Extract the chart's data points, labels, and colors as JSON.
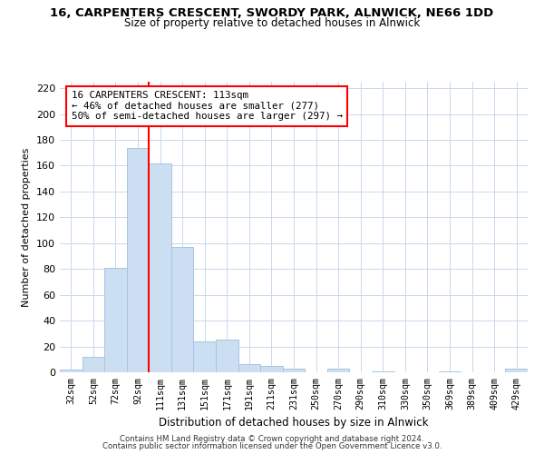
{
  "title": "16, CARPENTERS CRESCENT, SWORDY PARK, ALNWICK, NE66 1DD",
  "subtitle": "Size of property relative to detached houses in Alnwick",
  "xlabel": "Distribution of detached houses by size in Alnwick",
  "ylabel": "Number of detached properties",
  "bar_labels": [
    "32sqm",
    "52sqm",
    "72sqm",
    "92sqm",
    "111sqm",
    "131sqm",
    "151sqm",
    "171sqm",
    "191sqm",
    "211sqm",
    "231sqm",
    "250sqm",
    "270sqm",
    "290sqm",
    "310sqm",
    "330sqm",
    "350sqm",
    "369sqm",
    "389sqm",
    "409sqm",
    "429sqm"
  ],
  "bar_heights": [
    2,
    12,
    81,
    174,
    162,
    97,
    24,
    25,
    6,
    5,
    3,
    0,
    3,
    0,
    1,
    0,
    0,
    1,
    0,
    0,
    3
  ],
  "bar_color": "#ccdff2",
  "bar_edgecolor": "#aac4de",
  "vline_x_index": 3.5,
  "vline_color": "red",
  "ylim": [
    0,
    225
  ],
  "yticks": [
    0,
    20,
    40,
    60,
    80,
    100,
    120,
    140,
    160,
    180,
    200,
    220
  ],
  "annotation_text": "16 CARPENTERS CRESCENT: 113sqm\n← 46% of detached houses are smaller (277)\n50% of semi-detached houses are larger (297) →",
  "annotation_box_edgecolor": "red",
  "footer_line1": "Contains HM Land Registry data © Crown copyright and database right 2024.",
  "footer_line2": "Contains public sector information licensed under the Open Government Licence v3.0."
}
